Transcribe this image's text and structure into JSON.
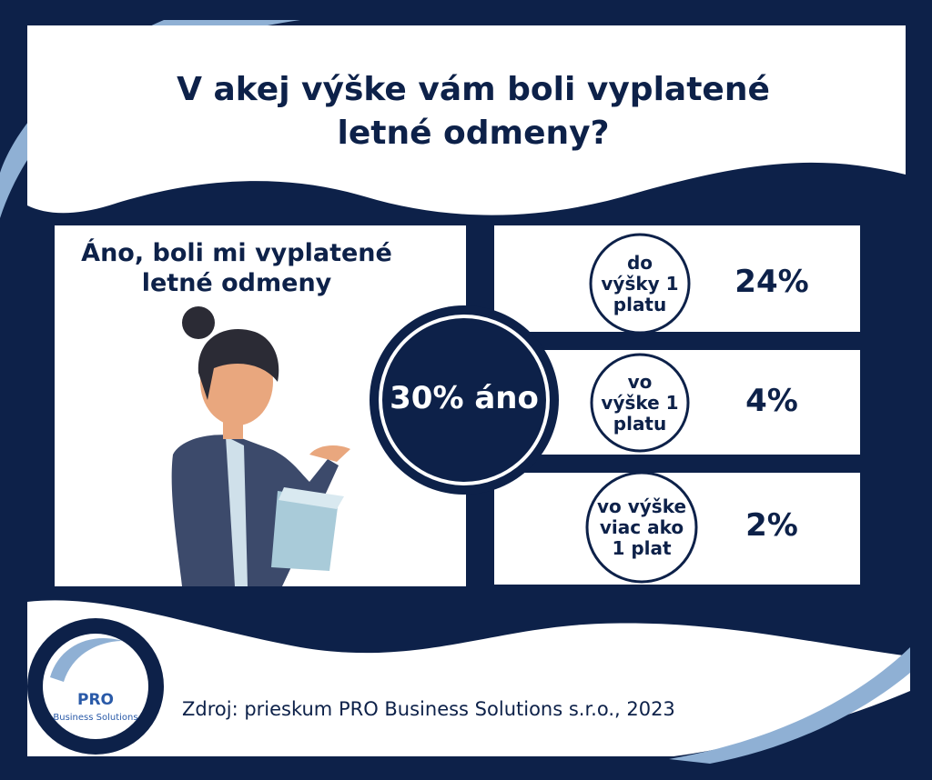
{
  "title": "V akej výške vám boli vyplatené letné odmeny?",
  "panel": {
    "heading": "Áno, boli mi vyplatené letné odmeny"
  },
  "center_label": "30% áno",
  "rows": [
    {
      "label": "do výšky 1 platu",
      "value": "24%"
    },
    {
      "label": "vo výške 1 platu",
      "value": "4%"
    },
    {
      "label": "vo výške viac ako 1 plat",
      "value": "2%"
    }
  ],
  "source": "Zdroj: prieskum PRO Business Solutions s.r.o., 2023",
  "logo": {
    "brand": "PRO",
    "tagline": "Business Solutions"
  }
}
